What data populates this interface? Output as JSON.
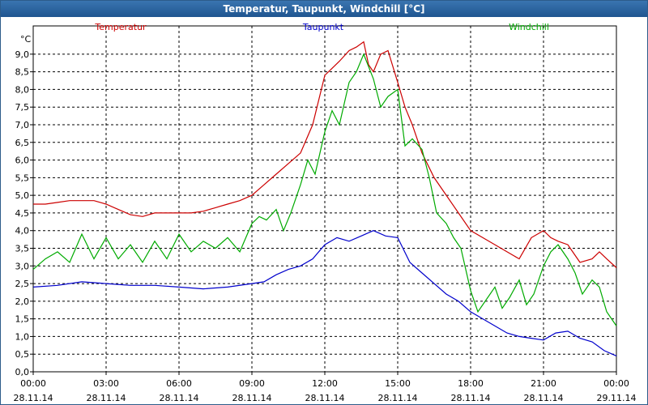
{
  "chart_data": {
    "type": "line",
    "title": "Temperatur, Taupunkt, Windchill [°C]",
    "unit": "°C",
    "ylim": [
      0,
      9.8
    ],
    "yticks": [
      "0,0",
      "0,5",
      "1,0",
      "1,5",
      "2,0",
      "2,5",
      "3,0",
      "3,5",
      "4,0",
      "4,5",
      "5,0",
      "5,5",
      "6,0",
      "6,5",
      "7,0",
      "7,5",
      "8,0",
      "8,5",
      "9,0"
    ],
    "xlim": [
      0,
      24
    ],
    "xticks": [
      {
        "time": "00:00",
        "date": "28.11.14"
      },
      {
        "time": "03:00",
        "date": "28.11.14"
      },
      {
        "time": "06:00",
        "date": "28.11.14"
      },
      {
        "time": "09:00",
        "date": "28.11.14"
      },
      {
        "time": "12:00",
        "date": "28.11.14"
      },
      {
        "time": "15:00",
        "date": "28.11.14"
      },
      {
        "time": "18:00",
        "date": "28.11.14"
      },
      {
        "time": "21:00",
        "date": "28.11.14"
      },
      {
        "time": "00:00",
        "date": "29.11.14"
      }
    ],
    "grid": true,
    "series": [
      {
        "name": "Temperatur",
        "color": "#cc0000",
        "x": [
          0,
          0.5,
          1,
          1.5,
          2,
          2.5,
          3,
          3.5,
          4,
          4.5,
          5,
          5.5,
          6,
          6.5,
          7,
          7.5,
          8,
          8.5,
          9,
          9.5,
          10,
          10.5,
          11,
          11.5,
          12,
          12.3,
          12.6,
          13,
          13.3,
          13.6,
          13.8,
          14,
          14.3,
          14.6,
          15,
          15.3,
          15.6,
          16,
          16.5,
          17,
          17.5,
          18,
          18.5,
          19,
          19.5,
          20,
          20.5,
          21,
          21.3,
          21.6,
          22,
          22.5,
          23,
          23.3,
          23.6,
          24
        ],
        "values": [
          4.75,
          4.75,
          4.8,
          4.85,
          4.85,
          4.85,
          4.75,
          4.6,
          4.45,
          4.4,
          4.5,
          4.5,
          4.5,
          4.5,
          4.55,
          4.65,
          4.75,
          4.85,
          5.0,
          5.3,
          5.6,
          5.9,
          6.2,
          7.0,
          8.4,
          8.6,
          8.8,
          9.1,
          9.2,
          9.35,
          8.7,
          8.5,
          9.0,
          9.1,
          8.2,
          7.5,
          7.0,
          6.2,
          5.5,
          5.0,
          4.5,
          4.0,
          3.8,
          3.6,
          3.4,
          3.2,
          3.8,
          4.0,
          3.8,
          3.7,
          3.6,
          3.1,
          3.2,
          3.4,
          3.2,
          2.95
        ]
      },
      {
        "name": "Taupunkt",
        "color": "#0000cc",
        "x": [
          0,
          1,
          2,
          3,
          4,
          5,
          6,
          7,
          8,
          9,
          9.5,
          10,
          10.5,
          11,
          11.5,
          12,
          12.5,
          13,
          13.5,
          14,
          14.5,
          15,
          15.5,
          16,
          16.5,
          17,
          17.5,
          18,
          18.5,
          19,
          19.5,
          20,
          20.5,
          21,
          21.5,
          22,
          22.5,
          23,
          23.5,
          24
        ],
        "values": [
          2.4,
          2.45,
          2.55,
          2.5,
          2.45,
          2.45,
          2.4,
          2.35,
          2.4,
          2.5,
          2.55,
          2.75,
          2.9,
          3.0,
          3.2,
          3.6,
          3.8,
          3.7,
          3.85,
          4.0,
          3.85,
          3.8,
          3.1,
          2.8,
          2.5,
          2.2,
          2.0,
          1.7,
          1.5,
          1.3,
          1.1,
          1.0,
          0.95,
          0.9,
          1.1,
          1.15,
          0.95,
          0.85,
          0.6,
          0.45
        ]
      },
      {
        "name": "Windchill",
        "color": "#00aa00",
        "x": [
          0,
          0.5,
          1,
          1.5,
          2,
          2.5,
          3,
          3.5,
          4,
          4.5,
          5,
          5.5,
          6,
          6.5,
          7,
          7.5,
          8,
          8.5,
          9,
          9.3,
          9.6,
          10,
          10.3,
          10.6,
          11,
          11.3,
          11.6,
          12,
          12.3,
          12.6,
          13,
          13.3,
          13.6,
          14,
          14.3,
          14.6,
          15,
          15.3,
          15.6,
          16,
          16.3,
          16.6,
          17,
          17.3,
          17.6,
          18,
          18.3,
          18.6,
          19,
          19.3,
          19.6,
          20,
          20.3,
          20.6,
          21,
          21.3,
          21.6,
          22,
          22.3,
          22.6,
          23,
          23.3,
          23.6,
          24
        ],
        "values": [
          2.9,
          3.2,
          3.4,
          3.1,
          3.9,
          3.2,
          3.8,
          3.2,
          3.6,
          3.1,
          3.7,
          3.2,
          3.9,
          3.4,
          3.7,
          3.5,
          3.8,
          3.4,
          4.2,
          4.4,
          4.3,
          4.6,
          4.0,
          4.5,
          5.3,
          6.0,
          5.6,
          6.8,
          7.4,
          7.0,
          8.2,
          8.5,
          9.0,
          8.3,
          7.5,
          7.8,
          8.0,
          6.4,
          6.6,
          6.3,
          5.5,
          4.5,
          4.2,
          3.8,
          3.5,
          2.3,
          1.7,
          2.0,
          2.4,
          1.8,
          2.1,
          2.6,
          1.9,
          2.2,
          3.0,
          3.4,
          3.6,
          3.2,
          2.8,
          2.2,
          2.6,
          2.4,
          1.7,
          1.3
        ]
      }
    ]
  }
}
